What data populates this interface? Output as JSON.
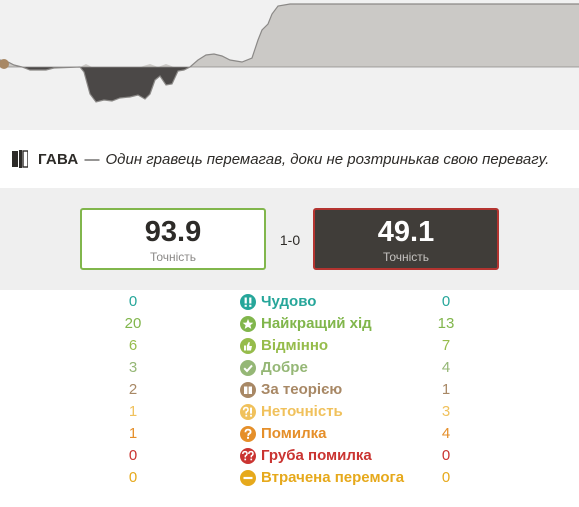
{
  "headline": {
    "label": "ГАВА",
    "dash": "—",
    "description": "Один гравець перемагав, доки не розтринькав свою перевагу."
  },
  "accuracy": {
    "white": {
      "value": "93.9",
      "caption": "Точність"
    },
    "black": {
      "value": "49.1",
      "caption": "Точність"
    },
    "result": "1-0"
  },
  "colors": {
    "brilliant": "#26a69a",
    "best": "#81b64c",
    "excellent": "#96bc4b",
    "good": "#95b776",
    "book": "#a88865",
    "inaccuracy": "#f0c15c",
    "mistake": "#e58f2a",
    "blunder": "#ca3431",
    "miss": "#e6a91c",
    "white_border": "#81b64c",
    "black_border": "#b33430"
  },
  "classifications": [
    {
      "key": "brilliant",
      "icon": "double-exclamation-icon",
      "label": "Чудово",
      "white": "0",
      "black": "0"
    },
    {
      "key": "best",
      "icon": "star-icon",
      "label": "Найкращий хід",
      "white": "20",
      "black": "13"
    },
    {
      "key": "excellent",
      "icon": "thumbs-up-icon",
      "label": "Відмінно",
      "white": "6",
      "black": "7"
    },
    {
      "key": "good",
      "icon": "checkmark-icon",
      "label": "Добре",
      "white": "3",
      "black": "4"
    },
    {
      "key": "book",
      "icon": "book-icon",
      "label": "За теорією",
      "white": "2",
      "black": "1"
    },
    {
      "key": "inaccuracy",
      "icon": "question-exclamation-icon",
      "label": "Неточність",
      "white": "1",
      "black": "3"
    },
    {
      "key": "mistake",
      "icon": "question-mark-icon",
      "label": "Помилка",
      "white": "1",
      "black": "4"
    },
    {
      "key": "blunder",
      "icon": "double-question-icon",
      "label": "Груба помилка",
      "white": "0",
      "black": "0"
    },
    {
      "key": "miss",
      "icon": "minus-icon",
      "label": "Втрачена перемога",
      "white": "0",
      "black": "0"
    }
  ]
}
